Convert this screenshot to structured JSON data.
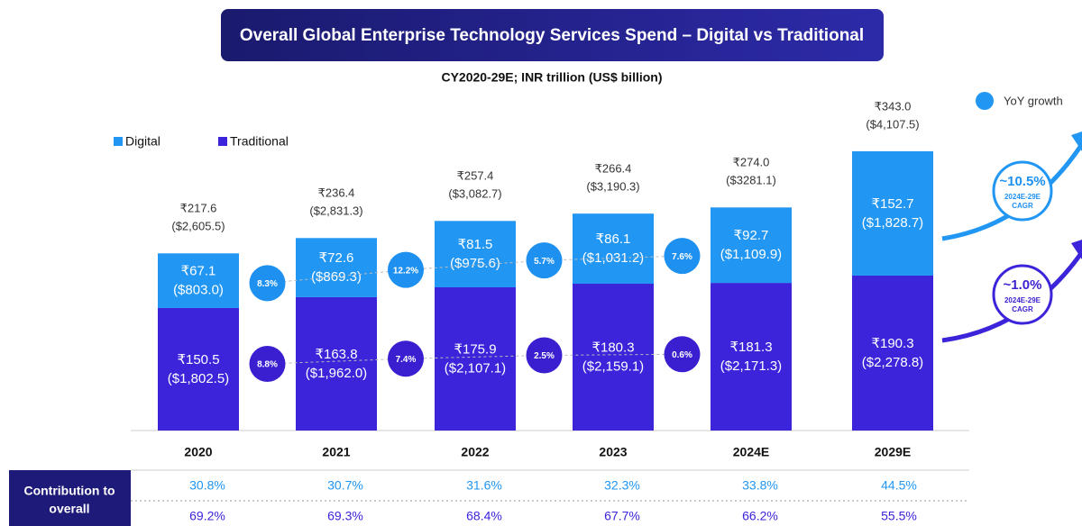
{
  "chart_data": {
    "type": "stacked-bar",
    "title": "Overall Global Enterprise Technology Services Spend – Digital vs Traditional",
    "subtitle": "CY2020-29E; INR trillion (US$ billion)",
    "categories": [
      "2020",
      "2021",
      "2022",
      "2023",
      "2024E",
      "2029E"
    ],
    "series": [
      {
        "name": "Digital",
        "color": "#2196f3",
        "values": [
          67.1,
          72.6,
          81.5,
          86.1,
          92.7,
          152.7
        ],
        "value_labels": [
          "₹67.1",
          "₹72.6",
          "₹81.5",
          "₹86.1",
          "₹92.7",
          "₹152.7"
        ],
        "usd_labels": [
          "($803.0)",
          "($869.3)",
          "($975.6)",
          "($1,031.2)",
          "($1,109.9)",
          "($1,828.7)"
        ],
        "growth_labels": [
          "8.3%",
          "12.2%",
          "5.7%",
          "7.6%"
        ],
        "cagr_label": "~10.5%"
      },
      {
        "name": "Traditional",
        "color": "#3b24d9",
        "values": [
          150.5,
          163.8,
          175.9,
          180.3,
          181.3,
          190.3
        ],
        "value_labels": [
          "₹150.5",
          "₹163.8",
          "₹175.9",
          "₹180.3",
          "₹181.3",
          "₹190.3"
        ],
        "usd_labels": [
          "($1,802.5)",
          "($1,962.0)",
          "($2,107.1)",
          "($2,159.1)",
          "($2,171.3)",
          "($2,278.8)"
        ],
        "growth_labels": [
          "8.8%",
          "7.4%",
          "2.5%",
          "0.6%"
        ],
        "cagr_label": "~1.0%"
      }
    ],
    "total_labels": [
      "₹217.6",
      "₹236.4",
      "₹257.4",
      "₹266.4",
      "₹274.0",
      "₹343.0"
    ],
    "total_usd_labels": [
      "($2,605.5)",
      "($2,831.3)",
      "($3,082.7)",
      "($3,190.3)",
      "($3281.1)",
      "($4,107.5)"
    ],
    "growth_legend": "YoY growth",
    "cagr_caption": [
      "2024E-29E",
      "CAGR"
    ],
    "table": {
      "label": [
        "Contribution to",
        "overall"
      ],
      "rows": [
        [
          "30.8%",
          "30.7%",
          "31.6%",
          "32.3%",
          "33.8%",
          "44.5%"
        ],
        [
          "69.2%",
          "69.3%",
          "68.4%",
          "67.7%",
          "66.2%",
          "55.5%"
        ]
      ]
    }
  }
}
